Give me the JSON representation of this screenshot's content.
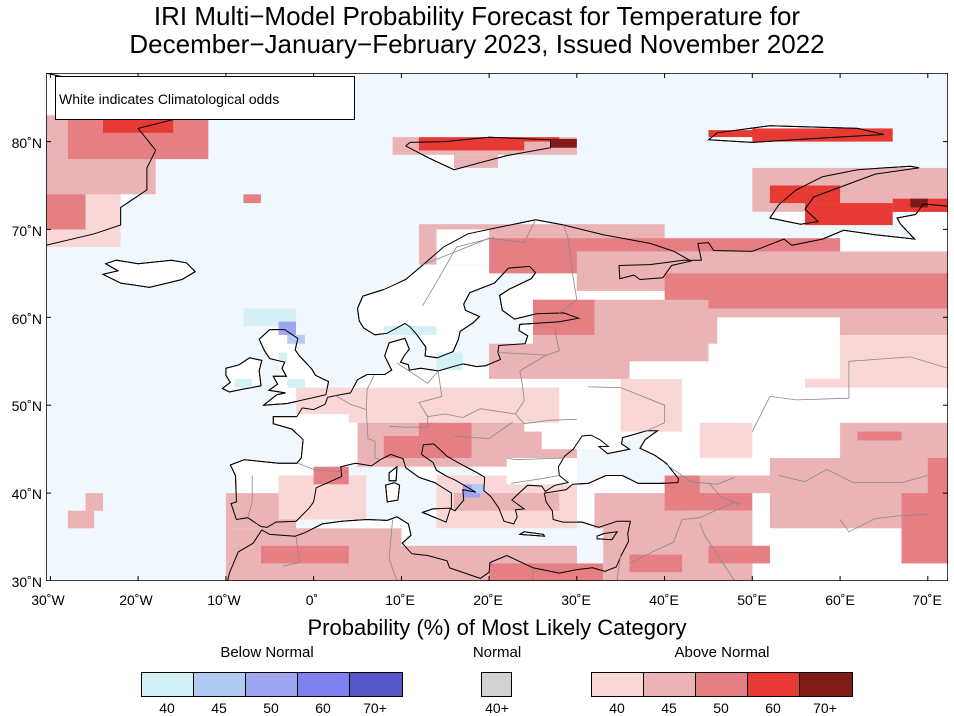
{
  "title": {
    "line1": "IRI Multi−Model Probability Forecast for Temperature for",
    "line2": "December−January−February 2023, Issued November 2022"
  },
  "map": {
    "region": "Europe",
    "lon_range": [
      -30,
      73
    ],
    "lat_range": [
      30,
      88
    ],
    "note": "White indicates Climatological odds",
    "lat_labels": [
      "80˚N",
      "70˚N",
      "60˚N",
      "50˚N",
      "40˚N",
      "30˚N"
    ],
    "lon_labels": [
      "30˚W",
      "20˚W",
      "10˚W",
      "0˚",
      "10˚E",
      "20˚E",
      "30˚E",
      "40˚E",
      "50˚E",
      "60˚E",
      "70˚E"
    ],
    "ocean_color": "#f0f7fd",
    "land_fill_color": "#ffffff",
    "coast_color": "#000000",
    "border_color": "#888888"
  },
  "legend": {
    "title": "Probability (%) of Most Likely Category",
    "below_normal": {
      "label": "Below Normal",
      "levels": [
        "40",
        "45",
        "50",
        "60",
        "70+"
      ],
      "colors": [
        "#d4f1f6",
        "#b3caf3",
        "#9ea6f1",
        "#7f82ee",
        "#5757c8"
      ]
    },
    "normal": {
      "label": "Normal",
      "levels": [
        "40+"
      ],
      "colors": [
        "#d2d2d2"
      ]
    },
    "above_normal": {
      "label": "Above Normal",
      "levels": [
        "40",
        "45",
        "50",
        "60",
        "70+"
      ],
      "colors": [
        "#f9d7d7",
        "#eab3b6",
        "#e57f84",
        "#e73a35",
        "#7f1a17"
      ]
    }
  }
}
